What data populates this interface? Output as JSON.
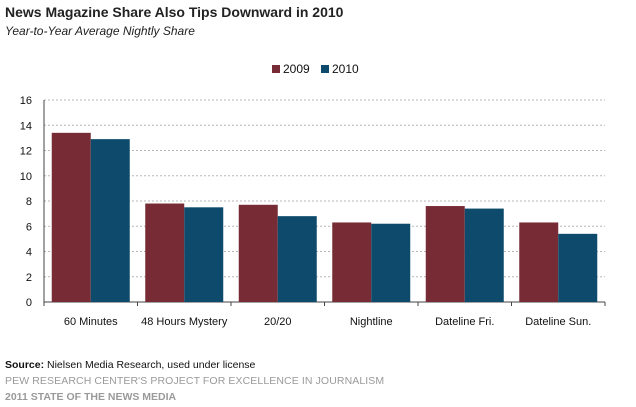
{
  "header": {
    "title": "News Magazine Share Also Tips Downward in 2010",
    "subtitle": "Year-to-Year Average Nightly Share"
  },
  "chart_data": {
    "type": "bar",
    "categories": [
      "60 Minutes",
      "48 Hours Mystery",
      "20/20",
      "Nightline",
      "Dateline Fri.",
      "Dateline Sun."
    ],
    "series": [
      {
        "name": "2009",
        "color": "#772b35",
        "values": [
          13.4,
          7.8,
          7.7,
          6.3,
          7.6,
          6.3
        ]
      },
      {
        "name": "2010",
        "color": "#0d4a6b",
        "values": [
          12.9,
          7.5,
          6.8,
          6.2,
          7.4,
          5.4
        ]
      }
    ],
    "ylim": [
      0,
      16
    ],
    "yticks": [
      0,
      2,
      4,
      6,
      8,
      10,
      12,
      14,
      16
    ],
    "grid": true,
    "legend": "top-center"
  },
  "footer": {
    "source_label": "Source:",
    "source_text": "Nielsen Media Research, used under license",
    "org": "PEW RESEARCH CENTER'S PROJECT FOR EXCELLENCE IN JOURNALISM",
    "report": "2011 STATE OF THE NEWS MEDIA"
  }
}
